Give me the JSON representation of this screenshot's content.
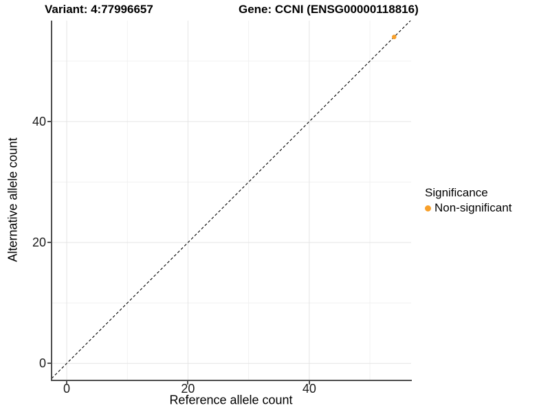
{
  "chart_data": {
    "type": "scatter",
    "titles": {
      "left": "Variant: 4:77996657",
      "right": "Gene: CCNI (ENSG00000118816)"
    },
    "xlabel": "Reference allele count",
    "ylabel": "Alternative allele count",
    "xlim": [
      -2.5,
      56.8
    ],
    "ylim": [
      -2.7,
      56.7
    ],
    "x_major_ticks": [
      0,
      20,
      40
    ],
    "x_minor_ticks": [
      10,
      30,
      50
    ],
    "y_major_ticks": [
      0,
      20,
      40
    ],
    "y_minor_ticks": [
      10,
      30,
      50
    ],
    "grid": "major+minor",
    "reference_line": {
      "kind": "identity y=x",
      "style": "dashed",
      "color": "#000000"
    },
    "series": [
      {
        "name": "Non-significant",
        "color": "#F8A02A",
        "points": [
          {
            "x": 54,
            "y": 54
          }
        ]
      }
    ],
    "legend": {
      "title": "Significance",
      "position": "right",
      "items": [
        {
          "label": "Non-significant",
          "color": "#F8A02A"
        }
      ]
    },
    "colors": {
      "grid_major": "#E4E4E4",
      "grid_minor": "#F1F1F1",
      "axis_line": "#4D4D4D",
      "tick_mark": "#4D4D4D",
      "text": "#000000"
    }
  }
}
